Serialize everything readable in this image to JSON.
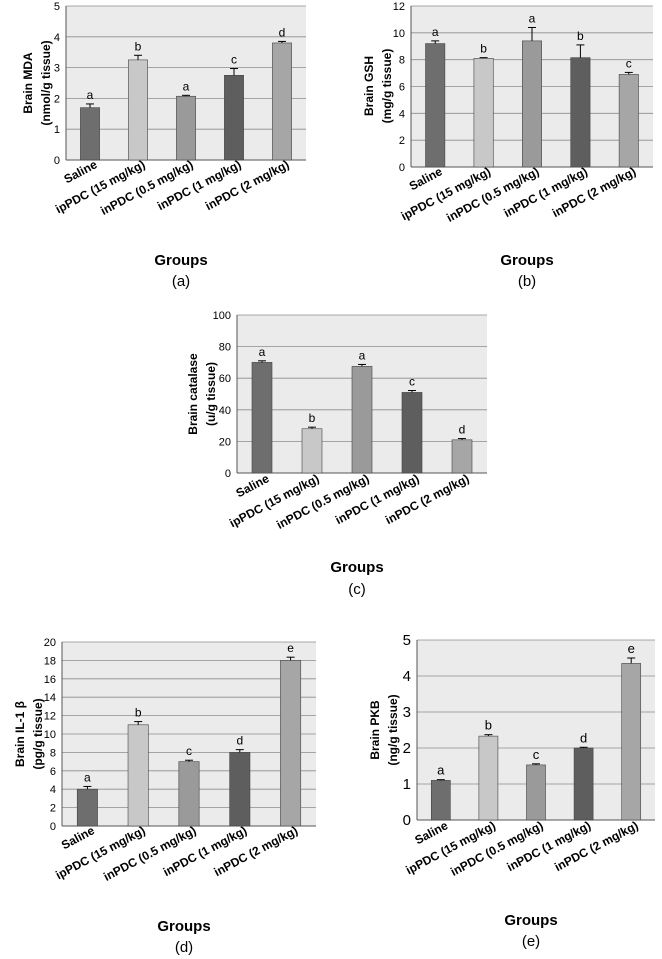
{
  "chart_data": [
    {
      "type": "bar",
      "panel": "(a)",
      "xlabel": "Groups",
      "ylabel": [
        "Brain MDA",
        "(nmol/g tissue)"
      ],
      "ylim": [
        0,
        5
      ],
      "yticks": [
        "0",
        "1",
        "2",
        "3",
        "4",
        "5"
      ],
      "categories": [
        "Saline",
        "ipPDC (15 mg/kg)",
        "inPDC (0.5 mg/kg)",
        "inPDC (1 mg/kg)",
        "inPDC (2 mg/kg)"
      ],
      "values": [
        1.7,
        3.25,
        2.07,
        2.75,
        3.8
      ],
      "errors": [
        0.12,
        0.15,
        0.03,
        0.22,
        0.05
      ],
      "letters": [
        "a",
        "b",
        "a",
        "c",
        "d"
      ],
      "colors": [
        "#6e6e6e",
        "#c8c8c8",
        "#9a9a9a",
        "#5e5e5e",
        "#a6a6a6"
      ]
    },
    {
      "type": "bar",
      "panel": "(b)",
      "xlabel": "Groups",
      "ylabel": [
        "Brain GSH",
        "(mg/g tissue)"
      ],
      "ylim": [
        0,
        12
      ],
      "yticks": [
        "0",
        "2",
        "4",
        "6",
        "8",
        "10",
        "12"
      ],
      "categories": [
        "Saline",
        "ipPDC (15 mg/kg)",
        "inPDC (0.5 mg/kg)",
        "inPDC (1 mg/kg)",
        "inPDC (2 mg/kg)"
      ],
      "values": [
        9.2,
        8.1,
        9.4,
        8.15,
        6.9
      ],
      "errors": [
        0.2,
        0.05,
        1.0,
        0.95,
        0.15
      ],
      "letters": [
        "a",
        "b",
        "a",
        "b",
        "c"
      ],
      "colors": [
        "#6e6e6e",
        "#c8c8c8",
        "#9a9a9a",
        "#5e5e5e",
        "#a6a6a6"
      ]
    },
    {
      "type": "bar",
      "panel": "(c)",
      "xlabel": "Groups",
      "ylabel": [
        "Brain catalase",
        "(u/g tissue)"
      ],
      "ylim": [
        0,
        100
      ],
      "yticks": [
        "0",
        "20",
        "40",
        "60",
        "80",
        "100"
      ],
      "categories": [
        "Saline",
        "ipPDC (15 mg/kg)",
        "inPDC (0.5 mg/kg)",
        "inPDC (1 mg/kg)",
        "inPDC (2 mg/kg)"
      ],
      "values": [
        70,
        28,
        67.5,
        51,
        21
      ],
      "errors": [
        1.0,
        1.0,
        1.2,
        1.2,
        0.8
      ],
      "letters": [
        "a",
        "b",
        "a",
        "c",
        "d"
      ],
      "colors": [
        "#6e6e6e",
        "#c8c8c8",
        "#9a9a9a",
        "#5e5e5e",
        "#a6a6a6"
      ]
    },
    {
      "type": "bar",
      "panel": "(d)",
      "xlabel": "Groups",
      "ylabel": [
        "Brain IL-1 β",
        "(pg/g tissue)"
      ],
      "ylim": [
        0,
        20
      ],
      "yticks": [
        "0",
        "2",
        "4",
        "6",
        "8",
        "10",
        "12",
        "14",
        "16",
        "18",
        "20"
      ],
      "categories": [
        "Saline",
        "ipPDC (15 mg/kg)",
        "inPDC (0.5 mg/kg)",
        "inPDC (1 mg/kg)",
        "inPDC (2 mg/kg)"
      ],
      "values": [
        4,
        11,
        7,
        8,
        18
      ],
      "errors": [
        0.3,
        0.35,
        0.15,
        0.3,
        0.35
      ],
      "letters": [
        "a",
        "b",
        "c",
        "d",
        "e"
      ],
      "colors": [
        "#6e6e6e",
        "#c8c8c8",
        "#9a9a9a",
        "#5e5e5e",
        "#a6a6a6"
      ]
    },
    {
      "type": "bar",
      "panel": "(e)",
      "xlabel": "Groups",
      "ylabel": [
        "Brain PKB",
        "(ng/g tissue)"
      ],
      "ylim": [
        0,
        5
      ],
      "yticks": [
        "0",
        "1",
        "2",
        "3",
        "4",
        "5"
      ],
      "categories": [
        "Saline",
        "ipPDC (15 mg/kg)",
        "inPDC (0.5 mg/kg)",
        "inPDC (1 mg/kg)",
        "inPDC (2 mg/kg)"
      ],
      "values": [
        1.1,
        2.33,
        1.53,
        2.0,
        4.35
      ],
      "errors": [
        0.02,
        0.04,
        0.03,
        0.02,
        0.15
      ],
      "letters": [
        "a",
        "b",
        "c",
        "d",
        "e"
      ],
      "colors": [
        "#6e6e6e",
        "#c8c8c8",
        "#9a9a9a",
        "#5e5e5e",
        "#a6a6a6"
      ]
    }
  ]
}
